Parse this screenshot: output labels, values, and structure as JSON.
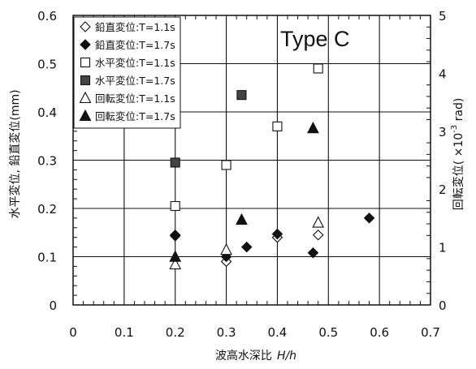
{
  "chart_data": {
    "type": "scatter",
    "annotation": "Type C",
    "xlabel": "波高水深比",
    "xlabel_var": "H/h",
    "ylabel_left": "水平変位, 鉛直変位(mm)",
    "ylabel_right_prefix": "回転変位( ×10",
    "ylabel_right_exp": "-3",
    "ylabel_right_suffix": " rad)",
    "xlim": [
      0,
      0.7
    ],
    "ylim_left": [
      0,
      0.6
    ],
    "ylim_right": [
      0,
      5
    ],
    "xticks": [
      "0",
      "0.1",
      "0.2",
      "0.3",
      "0.4",
      "0.5",
      "0.6",
      "0.7"
    ],
    "yticks_left": [
      "0",
      "0.1",
      "0.2",
      "0.3",
      "0.4",
      "0.5",
      "0.6"
    ],
    "yticks_right": [
      "0",
      "1",
      "2",
      "3",
      "4",
      "5"
    ],
    "grid": true,
    "legend_position": "top-left",
    "series": [
      {
        "name": "鉛直変位:T=1.1s",
        "marker": "diamond-open",
        "axis": "left",
        "points": [
          [
            0.2,
            0.145
          ],
          [
            0.3,
            0.09
          ],
          [
            0.4,
            0.14
          ],
          [
            0.48,
            0.145
          ]
        ]
      },
      {
        "name": "鉛直変位:T=1.7s",
        "marker": "diamond-filled",
        "axis": "left",
        "points": [
          [
            0.2,
            0.143
          ],
          [
            0.3,
            0.1
          ],
          [
            0.34,
            0.12
          ],
          [
            0.4,
            0.147
          ],
          [
            0.47,
            0.108
          ],
          [
            0.58,
            0.18
          ]
        ]
      },
      {
        "name": "水平変位:T=1.1s",
        "marker": "square-open",
        "axis": "left",
        "points": [
          [
            0.2,
            0.205
          ],
          [
            0.3,
            0.29
          ],
          [
            0.4,
            0.37
          ],
          [
            0.48,
            0.49
          ]
        ]
      },
      {
        "name": "水平変位:T=1.7s",
        "marker": "square-filled",
        "axis": "left",
        "points": [
          [
            0.2,
            0.295
          ],
          [
            0.33,
            0.435
          ]
        ]
      },
      {
        "name": "回転変位:T=1.1s",
        "marker": "triangle-open",
        "axis": "right",
        "points": [
          [
            0.2,
            0.7
          ],
          [
            0.3,
            0.95
          ],
          [
            0.48,
            1.42
          ]
        ]
      },
      {
        "name": "回転変位:T=1.7s",
        "marker": "triangle-filled",
        "axis": "right",
        "points": [
          [
            0.2,
            0.83
          ],
          [
            0.33,
            1.47
          ],
          [
            0.47,
            3.05
          ]
        ]
      }
    ]
  }
}
